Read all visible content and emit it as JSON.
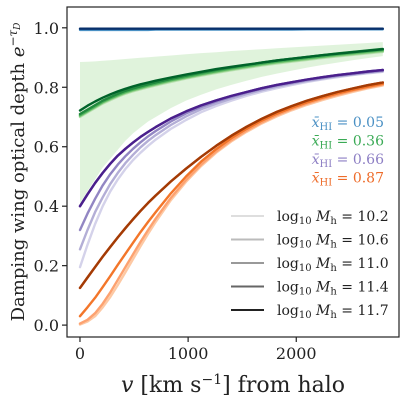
{
  "chart_data": {
    "type": "line",
    "xlabel": "v [km s⁻¹] from halo",
    "ylabel": "Damping wing optical depth e^{−τ_D}",
    "ylabel_main": "Damping wing optical depth ",
    "ylabel_exp_base": "e",
    "ylabel_exp_sup": "−τ",
    "ylabel_exp_sub": "D",
    "xlim": [
      -120,
      2950
    ],
    "ylim": [
      -0.04,
      1.07
    ],
    "xticks": [
      0,
      1000,
      2000
    ],
    "yticks": [
      0.0,
      0.2,
      0.4,
      0.6,
      0.8,
      1.0
    ],
    "xtick_labels": [
      "0",
      "1000",
      "2000"
    ],
    "ytick_labels": [
      "0.0",
      "0.2",
      "0.4",
      "0.6",
      "0.8",
      "1.0"
    ],
    "grid": false,
    "x": [
      0,
      70,
      140,
      210,
      280,
      350,
      420,
      490,
      560,
      630,
      700,
      840,
      980,
      1120,
      1260,
      1400,
      1540,
      1680,
      1820,
      1960,
      2100,
      2240,
      2380,
      2520,
      2660,
      2800
    ],
    "color_legend": [
      {
        "label": "x̄_HI = 0.05",
        "sym": "x̄",
        "sub": "HI",
        "val": " = 0.05",
        "color": "#4a90c4"
      },
      {
        "label": "x̄_HI = 0.36",
        "sym": "x̄",
        "sub": "HI",
        "val": " = 0.36",
        "color": "#3aaa55"
      },
      {
        "label": "x̄_HI = 0.66",
        "sym": "x̄",
        "sub": "HI",
        "val": " = 0.66",
        "color": "#8d7fc4"
      },
      {
        "label": "x̄_HI = 0.87",
        "sym": "x̄",
        "sub": "HI",
        "val": " = 0.87",
        "color": "#ee6c2a"
      }
    ],
    "mass_legend": [
      {
        "label": "log10 Mh = 10.2",
        "pre": "log",
        "sub": "10",
        "sym": "M",
        "sub2": "h",
        "val": " = 10.2",
        "color": "#dedede"
      },
      {
        "label": "log10 Mh = 10.6",
        "pre": "log",
        "sub": "10",
        "sym": "M",
        "sub2": "h",
        "val": " = 10.6",
        "color": "#bbbbbb"
      },
      {
        "label": "log10 Mh = 11.0",
        "pre": "log",
        "sub": "10",
        "sym": "M",
        "sub2": "h",
        "val": " = 11.0",
        "color": "#999999"
      },
      {
        "label": "log10 Mh = 11.4",
        "pre": "log",
        "sub": "10",
        "sym": "M",
        "sub2": "h",
        "val": " = 11.4",
        "color": "#666666"
      },
      {
        "label": "log10 Mh = 11.7",
        "pre": "log",
        "sub": "10",
        "sym": "M",
        "sub2": "h",
        "val": " = 11.7",
        "color": "#222222"
      }
    ],
    "band": {
      "xHI": 0.36,
      "color": "#c7e9c0",
      "upper": [
        0.885,
        0.886,
        0.887,
        0.889,
        0.891,
        0.893,
        0.895,
        0.897,
        0.899,
        0.901,
        0.903,
        0.907,
        0.911,
        0.915,
        0.918,
        0.922,
        0.925,
        0.928,
        0.931,
        0.934,
        0.937,
        0.94,
        0.943,
        0.946,
        0.949,
        0.952
      ],
      "lower": [
        0.41,
        0.45,
        0.49,
        0.53,
        0.56,
        0.59,
        0.62,
        0.645,
        0.665,
        0.685,
        0.7,
        0.73,
        0.755,
        0.775,
        0.793,
        0.808,
        0.822,
        0.835,
        0.846,
        0.856,
        0.866,
        0.875,
        0.883,
        0.891,
        0.898,
        0.905
      ]
    },
    "series": [
      {
        "xHI": 0.05,
        "log10Mh": 10.2,
        "color": "#4a90c4",
        "values": [
          0.993,
          0.993,
          0.993,
          0.993,
          0.993,
          0.993,
          0.993,
          0.993,
          0.993,
          0.993,
          0.994,
          0.994,
          0.994,
          0.994,
          0.994,
          0.994,
          0.994,
          0.994,
          0.994,
          0.994,
          0.995,
          0.995,
          0.995,
          0.995,
          0.995,
          0.995
        ]
      },
      {
        "xHI": 0.05,
        "log10Mh": 11.7,
        "color": "#08306b",
        "values": [
          0.997,
          0.997,
          0.997,
          0.997,
          0.997,
          0.997,
          0.997,
          0.997,
          0.997,
          0.997,
          0.997,
          0.997,
          0.997,
          0.997,
          0.997,
          0.997,
          0.997,
          0.997,
          0.997,
          0.997,
          0.997,
          0.997,
          0.997,
          0.997,
          0.997,
          0.997
        ]
      },
      {
        "xHI": 0.36,
        "log10Mh": 10.2,
        "color": "#b9e2b1",
        "values": [
          0.7,
          0.715,
          0.73,
          0.745,
          0.757,
          0.768,
          0.778,
          0.786,
          0.793,
          0.8,
          0.806,
          0.818,
          0.829,
          0.839,
          0.848,
          0.857,
          0.865,
          0.873,
          0.88,
          0.886,
          0.892,
          0.898,
          0.904,
          0.909,
          0.914,
          0.919
        ]
      },
      {
        "xHI": 0.36,
        "log10Mh": 10.6,
        "color": "#86cc7e",
        "values": [
          0.703,
          0.718,
          0.733,
          0.748,
          0.76,
          0.771,
          0.781,
          0.789,
          0.796,
          0.803,
          0.809,
          0.821,
          0.832,
          0.842,
          0.851,
          0.86,
          0.868,
          0.876,
          0.883,
          0.889,
          0.895,
          0.901,
          0.907,
          0.912,
          0.917,
          0.922
        ]
      },
      {
        "xHI": 0.36,
        "log10Mh": 11.0,
        "color": "#4cb15a",
        "values": [
          0.706,
          0.721,
          0.736,
          0.751,
          0.763,
          0.774,
          0.784,
          0.792,
          0.799,
          0.806,
          0.812,
          0.824,
          0.835,
          0.845,
          0.854,
          0.863,
          0.871,
          0.879,
          0.886,
          0.892,
          0.898,
          0.904,
          0.91,
          0.915,
          0.92,
          0.925
        ]
      },
      {
        "xHI": 0.36,
        "log10Mh": 11.4,
        "color": "#218a3e",
        "values": [
          0.71,
          0.725,
          0.74,
          0.755,
          0.767,
          0.778,
          0.788,
          0.796,
          0.803,
          0.81,
          0.816,
          0.828,
          0.839,
          0.849,
          0.858,
          0.867,
          0.875,
          0.883,
          0.89,
          0.896,
          0.902,
          0.908,
          0.914,
          0.919,
          0.924,
          0.929
        ]
      },
      {
        "xHI": 0.36,
        "log10Mh": 11.7,
        "color": "#00632a",
        "values": [
          0.722,
          0.738,
          0.752,
          0.765,
          0.776,
          0.786,
          0.795,
          0.803,
          0.81,
          0.816,
          0.822,
          0.833,
          0.843,
          0.852,
          0.861,
          0.869,
          0.876,
          0.883,
          0.89,
          0.896,
          0.902,
          0.908,
          0.913,
          0.918,
          0.923,
          0.928
        ]
      },
      {
        "xHI": 0.66,
        "log10Mh": 10.2,
        "color": "#d4d2ea",
        "values": [
          0.195,
          0.27,
          0.34,
          0.4,
          0.45,
          0.49,
          0.525,
          0.555,
          0.58,
          0.603,
          0.624,
          0.66,
          0.69,
          0.716,
          0.737,
          0.755,
          0.771,
          0.785,
          0.797,
          0.808,
          0.818,
          0.826,
          0.834,
          0.841,
          0.847,
          0.852
        ]
      },
      {
        "xHI": 0.66,
        "log10Mh": 10.6,
        "color": "#b3aed6",
        "values": [
          0.255,
          0.32,
          0.38,
          0.43,
          0.475,
          0.512,
          0.545,
          0.573,
          0.598,
          0.62,
          0.639,
          0.673,
          0.702,
          0.726,
          0.745,
          0.762,
          0.777,
          0.79,
          0.802,
          0.812,
          0.821,
          0.829,
          0.837,
          0.843,
          0.849,
          0.854
        ]
      },
      {
        "xHI": 0.66,
        "log10Mh": 11.0,
        "color": "#9286c3",
        "values": [
          0.32,
          0.375,
          0.425,
          0.47,
          0.508,
          0.54,
          0.568,
          0.593,
          0.615,
          0.635,
          0.653,
          0.685,
          0.712,
          0.734,
          0.752,
          0.768,
          0.782,
          0.795,
          0.806,
          0.815,
          0.824,
          0.832,
          0.839,
          0.845,
          0.851,
          0.856
        ]
      },
      {
        "xHI": 0.66,
        "log10Mh": 11.4,
        "color": "#6b4fa8",
        "values": [
          0.4,
          0.44,
          0.478,
          0.512,
          0.543,
          0.57,
          0.593,
          0.614,
          0.633,
          0.65,
          0.666,
          0.695,
          0.719,
          0.739,
          0.756,
          0.771,
          0.784,
          0.797,
          0.808,
          0.817,
          0.826,
          0.834,
          0.841,
          0.847,
          0.853,
          0.858
        ]
      },
      {
        "xHI": 0.66,
        "log10Mh": 11.7,
        "color": "#4a1f8c",
        "values": [
          0.4,
          0.44,
          0.478,
          0.512,
          0.543,
          0.57,
          0.593,
          0.614,
          0.633,
          0.65,
          0.666,
          0.695,
          0.719,
          0.739,
          0.756,
          0.771,
          0.784,
          0.797,
          0.808,
          0.817,
          0.826,
          0.834,
          0.841,
          0.847,
          0.853,
          0.858
        ]
      },
      {
        "xHI": 0.87,
        "log10Mh": 10.2,
        "color": "#fdc9a4",
        "values": [
          0.002,
          0.012,
          0.03,
          0.06,
          0.095,
          0.135,
          0.178,
          0.222,
          0.265,
          0.307,
          0.347,
          0.42,
          0.482,
          0.535,
          0.58,
          0.618,
          0.65,
          0.678,
          0.702,
          0.723,
          0.741,
          0.757,
          0.771,
          0.784,
          0.796,
          0.806
        ]
      },
      {
        "xHI": 0.87,
        "log10Mh": 10.6,
        "color": "#fda270",
        "values": [
          0.005,
          0.018,
          0.04,
          0.072,
          0.11,
          0.152,
          0.195,
          0.238,
          0.28,
          0.32,
          0.358,
          0.428,
          0.488,
          0.54,
          0.584,
          0.622,
          0.654,
          0.682,
          0.706,
          0.727,
          0.745,
          0.761,
          0.775,
          0.788,
          0.799,
          0.809
        ]
      },
      {
        "xHI": 0.87,
        "log10Mh": 11.0,
        "color": "#f3762a",
        "values": [
          0.03,
          0.06,
          0.092,
          0.128,
          0.165,
          0.203,
          0.24,
          0.277,
          0.313,
          0.347,
          0.38,
          0.443,
          0.5,
          0.55,
          0.592,
          0.629,
          0.66,
          0.688,
          0.711,
          0.731,
          0.749,
          0.765,
          0.779,
          0.791,
          0.802,
          0.812
        ]
      },
      {
        "xHI": 0.87,
        "log10Mh": 11.4,
        "color": "#d9531a",
        "values": [
          0.125,
          0.16,
          0.195,
          0.23,
          0.263,
          0.295,
          0.326,
          0.356,
          0.384,
          0.411,
          0.436,
          0.483,
          0.526,
          0.566,
          0.603,
          0.637,
          0.667,
          0.694,
          0.717,
          0.737,
          0.755,
          0.77,
          0.784,
          0.796,
          0.807,
          0.816
        ]
      },
      {
        "xHI": 0.87,
        "log10Mh": 11.7,
        "color": "#a33b05",
        "values": [
          0.125,
          0.16,
          0.195,
          0.23,
          0.263,
          0.295,
          0.326,
          0.356,
          0.384,
          0.411,
          0.436,
          0.483,
          0.526,
          0.566,
          0.603,
          0.637,
          0.667,
          0.694,
          0.717,
          0.737,
          0.755,
          0.77,
          0.784,
          0.796,
          0.807,
          0.816
        ]
      }
    ]
  }
}
